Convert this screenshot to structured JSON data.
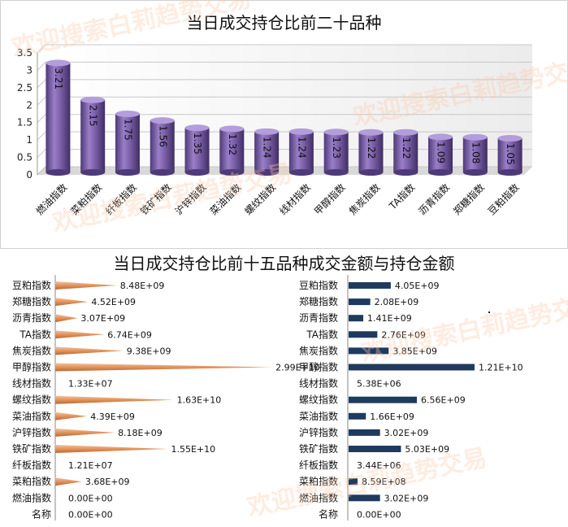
{
  "watermark_text": "欢迎搜索白莉趋势交易",
  "colors": {
    "bar_purple": "#7b5fa8",
    "cone_orange": "#e3935a",
    "bar_navy": "#1f3a5f",
    "grid": "#c8c8c8"
  },
  "chart_data": [
    {
      "type": "bar",
      "title": "当日成交持仓比前二十品种",
      "categories": [
        "燃油指数",
        "菜粕指数",
        "纤板指数",
        "铁矿指数",
        "沪锌指数",
        "菜油指数",
        "螺纹指数",
        "线材指数",
        "甲醇指数",
        "焦炭指数",
        "TA指数",
        "沥青指数",
        "郑糖指数",
        "豆粕指数"
      ],
      "values": [
        3.21,
        2.15,
        1.75,
        1.56,
        1.35,
        1.32,
        1.24,
        1.24,
        1.23,
        1.22,
        1.22,
        1.09,
        1.08,
        1.05
      ],
      "value_labels": [
        "3.21",
        "2.15",
        "1.75",
        "1.56",
        "1.35",
        "1.32",
        "1.24",
        "1.24",
        "1.23",
        "1.22",
        "1.22",
        "1.09",
        "1.08",
        "1.05"
      ],
      "yticks": [
        "0",
        "0.5",
        "1",
        "1.5",
        "2",
        "2.5",
        "3",
        "3.5"
      ],
      "ylim": [
        0,
        3.5
      ],
      "grid": true
    },
    {
      "type": "bar",
      "orientation": "horizontal",
      "title": "当日成交持仓比前十五品种成交金额与持仓金额",
      "categories": [
        "豆粕指数",
        "郑糖指数",
        "沥青指数",
        "TA指数",
        "焦炭指数",
        "甲醇指数",
        "线材指数",
        "螺纹指数",
        "菜油指数",
        "沪锌指数",
        "铁矿指数",
        "纤板指数",
        "菜粕指数",
        "燃油指数",
        "名称"
      ],
      "values": [
        8480000000,
        4520000000,
        3070000000,
        6740000000,
        9380000000,
        29900000000,
        13300000,
        16300000000,
        4390000000,
        8180000000,
        15500000000,
        12100000,
        3680000000,
        0,
        0
      ],
      "value_labels": [
        "8.48E+09",
        "4.52E+09",
        "3.07E+09",
        "6.74E+09",
        "9.38E+09",
        "2.99E+10",
        "1.33E+07",
        "1.63E+10",
        "4.39E+09",
        "8.18E+09",
        "1.55E+10",
        "1.21E+07",
        "3.68E+09",
        "0.00E+00",
        "0.00E+00"
      ],
      "xlim": [
        0,
        30000000000
      ]
    },
    {
      "type": "bar",
      "orientation": "horizontal",
      "categories": [
        "豆粕指数",
        "郑糖指数",
        "沥青指数",
        "TA指数",
        "焦炭指数",
        "甲醇指数",
        "线材指数",
        "螺纹指数",
        "菜油指数",
        "沪锌指数",
        "铁矿指数",
        "纤板指数",
        "菜粕指数",
        "燃油指数",
        "名称"
      ],
      "values": [
        4050000000,
        2080000000,
        1410000000,
        2760000000,
        3850000000,
        12100000000,
        5380000,
        6560000000,
        1660000000,
        3020000000,
        5030000000,
        3440000,
        859000000,
        3020000000,
        0
      ],
      "value_labels": [
        "4.05E+09",
        "2.08E+09",
        "1.41E+09",
        "2.76E+09",
        "3.85E+09",
        "1.21E+10",
        "5.38E+06",
        "6.56E+09",
        "1.66E+09",
        "3.02E+09",
        "5.03E+09",
        "3.44E+06",
        "8.59E+08",
        "3.02E+09",
        "0.00E+00"
      ],
      "xlim": [
        0,
        12100000000
      ]
    }
  ]
}
